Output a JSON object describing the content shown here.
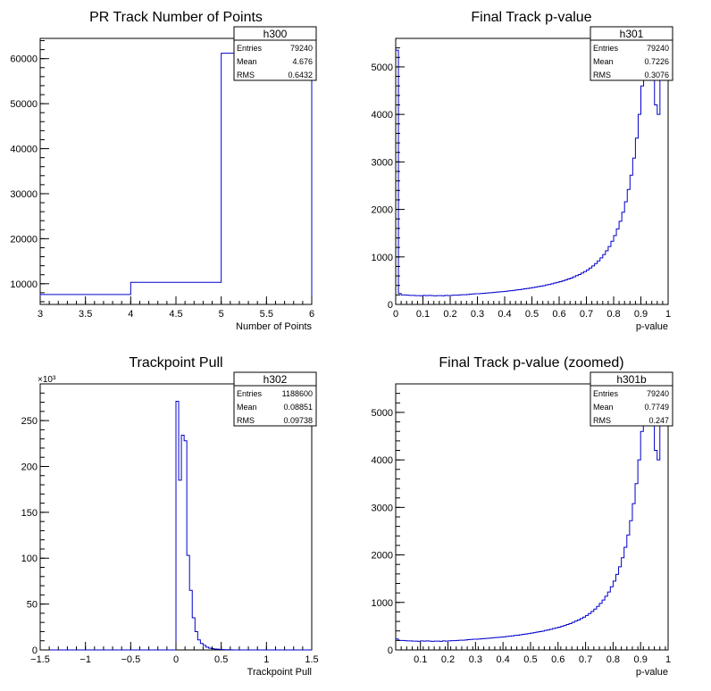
{
  "chart_data": [
    {
      "type": "histogram",
      "title": "PR Track Number of Points",
      "xlabel": "Number of Points",
      "ylabel": "",
      "xlim": [
        3,
        6
      ],
      "ylim": [
        5400,
        64500
      ],
      "xticks": [
        3,
        3.5,
        4,
        4.5,
        5,
        5.5,
        6
      ],
      "xtick_labels": [
        "3",
        "3.5",
        "4",
        "4.5",
        "5",
        "5.5",
        "6"
      ],
      "yticks": [
        10000,
        20000,
        30000,
        40000,
        50000,
        60000
      ],
      "ytick_labels": [
        "10000",
        "20000",
        "30000",
        "40000",
        "50000",
        "60000"
      ],
      "y_exponent": "",
      "bins": [
        {
          "x0": 3,
          "x1": 4,
          "y": 7600
        },
        {
          "x0": 4,
          "x1": 5,
          "y": 10300
        },
        {
          "x0": 5,
          "x1": 6,
          "y": 61200
        }
      ],
      "stats": {
        "name": "h300",
        "rows": [
          [
            "Entries",
            "79240"
          ],
          [
            "Mean",
            "4.676"
          ],
          [
            "RMS",
            "0.6432"
          ]
        ]
      }
    },
    {
      "type": "histogram",
      "title": "Final Track p-value",
      "xlabel": "p-value",
      "ylabel": "",
      "xlim": [
        0,
        1
      ],
      "ylim": [
        0,
        5600
      ],
      "xticks": [
        0,
        0.1,
        0.2,
        0.3,
        0.4,
        0.5,
        0.6,
        0.7,
        0.8,
        0.9,
        1
      ],
      "xtick_labels": [
        "0",
        "0.1",
        "0.2",
        "0.3",
        "0.4",
        "0.5",
        "0.6",
        "0.7",
        "0.8",
        "0.9",
        "1"
      ],
      "yticks": [
        0,
        1000,
        2000,
        3000,
        4000,
        5000
      ],
      "ytick_labels": [
        "0",
        "1000",
        "2000",
        "3000",
        "4000",
        "5000"
      ],
      "y_exponent": "",
      "bin_start": 0,
      "bin_width": 0.01,
      "bin_values": [
        5350,
        230,
        200,
        200,
        195,
        190,
        190,
        185,
        185,
        180,
        190,
        185,
        190,
        185,
        180,
        185,
        185,
        180,
        190,
        185,
        190,
        195,
        195,
        200,
        205,
        205,
        210,
        215,
        220,
        225,
        225,
        230,
        235,
        240,
        245,
        250,
        255,
        260,
        265,
        270,
        275,
        285,
        290,
        295,
        305,
        310,
        320,
        330,
        335,
        345,
        355,
        365,
        375,
        385,
        395,
        410,
        420,
        435,
        450,
        465,
        480,
        495,
        515,
        535,
        555,
        580,
        605,
        630,
        660,
        690,
        725,
        765,
        810,
        860,
        915,
        980,
        1050,
        1130,
        1220,
        1330,
        1450,
        1590,
        1750,
        1940,
        2160,
        2420,
        2720,
        3080,
        3500,
        4000,
        4600,
        5350,
        5600,
        5600,
        5600,
        4200,
        4000,
        5600,
        5600,
        5600
      ],
      "stats": {
        "name": "h301",
        "rows": [
          [
            "Entries",
            "79240"
          ],
          [
            "Mean",
            "0.7226"
          ],
          [
            "RMS",
            "0.3076"
          ]
        ]
      }
    },
    {
      "type": "histogram",
      "title": "Trackpoint Pull",
      "xlabel": "Trackpoint Pull",
      "ylabel": "",
      "xlim": [
        -1.5,
        1.5
      ],
      "ylim": [
        0,
        290
      ],
      "xticks": [
        -1.5,
        -1,
        -0.5,
        0,
        0.5,
        1,
        1.5
      ],
      "xtick_labels": [
        "−1.5",
        "−1",
        "−0.5",
        "0",
        "0.5",
        "1",
        "1.5"
      ],
      "yticks": [
        0,
        50,
        100,
        150,
        200,
        250
      ],
      "ytick_labels": [
        "0",
        "50",
        "100",
        "150",
        "200",
        "250"
      ],
      "y_exponent": "×10³",
      "bin_start": -1.5,
      "bin_width": 0.03,
      "bin_values": [
        0,
        0,
        0,
        0,
        0,
        0,
        0,
        0,
        0,
        0,
        0,
        0,
        0,
        0,
        0,
        0,
        0,
        0,
        0,
        0,
        0,
        0,
        0,
        0,
        0,
        0,
        0,
        0,
        0,
        0,
        0,
        0,
        0,
        0,
        0,
        0,
        0,
        0,
        0,
        0,
        0,
        0,
        0,
        0,
        0,
        0,
        0,
        0,
        0,
        0,
        271,
        185,
        234,
        228,
        103,
        65,
        35,
        20,
        11,
        7,
        5,
        3,
        2,
        1.5,
        1,
        0.8,
        0.5,
        0.4,
        0.3,
        0.2,
        0.1,
        0,
        0,
        0,
        0,
        0,
        0,
        0,
        0,
        0,
        0,
        0,
        0,
        0,
        0,
        0,
        0,
        0,
        0,
        0,
        0,
        0,
        0,
        0,
        0,
        0,
        0,
        0,
        0,
        0
      ],
      "stats": {
        "name": "h302",
        "rows": [
          [
            "Entries",
            "1188600"
          ],
          [
            "Mean",
            "0.08851"
          ],
          [
            "RMS",
            "0.09738"
          ]
        ]
      }
    },
    {
      "type": "histogram",
      "title": "Final Track p-value (zoomed)",
      "xlabel": "p-value",
      "ylabel": "",
      "xlim": [
        0.01,
        1
      ],
      "ylim": [
        0,
        5600
      ],
      "xticks": [
        0.1,
        0.2,
        0.3,
        0.4,
        0.5,
        0.6,
        0.7,
        0.8,
        0.9,
        1
      ],
      "xtick_labels": [
        "0.1",
        "0.2",
        "0.3",
        "0.4",
        "0.5",
        "0.6",
        "0.7",
        "0.8",
        "0.9",
        "1"
      ],
      "yticks": [
        0,
        1000,
        2000,
        3000,
        4000,
        5000
      ],
      "ytick_labels": [
        "0",
        "1000",
        "2000",
        "3000",
        "4000",
        "5000"
      ],
      "y_exponent": "",
      "bin_start": 0.01,
      "bin_width": 0.01,
      "bin_values": [
        230,
        200,
        200,
        195,
        190,
        190,
        185,
        185,
        180,
        190,
        185,
        190,
        185,
        180,
        185,
        185,
        180,
        190,
        185,
        190,
        195,
        195,
        200,
        205,
        205,
        210,
        215,
        220,
        225,
        225,
        230,
        235,
        240,
        245,
        250,
        255,
        260,
        265,
        270,
        275,
        285,
        290,
        295,
        305,
        310,
        320,
        330,
        335,
        345,
        355,
        365,
        375,
        385,
        395,
        410,
        420,
        435,
        450,
        465,
        480,
        495,
        515,
        535,
        555,
        580,
        605,
        630,
        660,
        690,
        725,
        765,
        810,
        860,
        915,
        980,
        1050,
        1130,
        1220,
        1330,
        1450,
        1590,
        1750,
        1940,
        2160,
        2420,
        2720,
        3080,
        3500,
        4000,
        4600,
        5350,
        5600,
        5600,
        5600,
        4200,
        4000,
        5600,
        5600,
        5600
      ],
      "stats": {
        "name": "h301b",
        "rows": [
          [
            "Entries",
            "79240"
          ],
          [
            "Mean",
            "0.7749"
          ],
          [
            "RMS",
            "0.247"
          ]
        ]
      }
    }
  ],
  "colors": {
    "line": "#0000cc",
    "axis": "#000000",
    "background": "#ffffff"
  }
}
